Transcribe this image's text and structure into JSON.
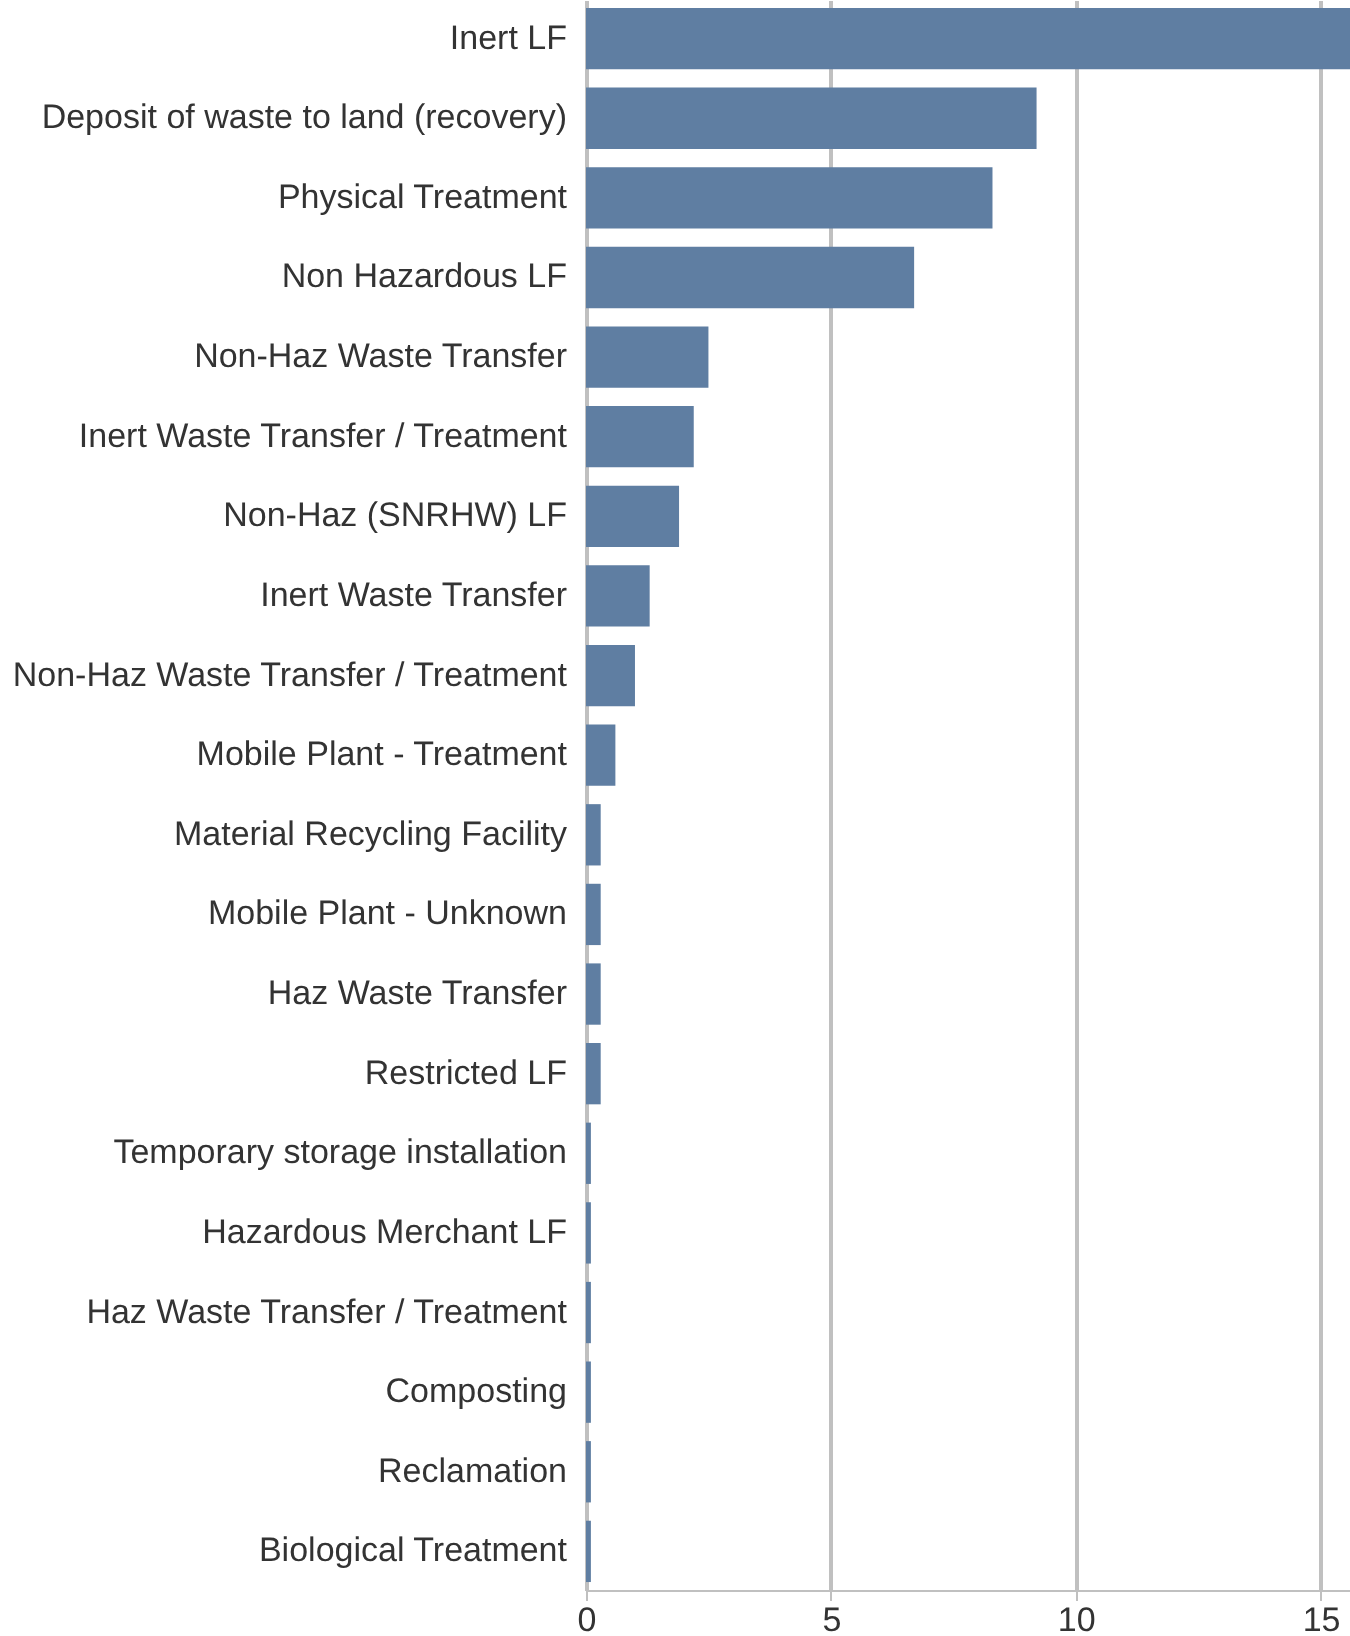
{
  "chart_data": {
    "type": "bar",
    "orientation": "horizontal",
    "categories": [
      "Inert LF",
      "Deposit of waste to land (recovery)",
      "Physical Treatment",
      "Non Hazardous LF",
      "Non-Haz Waste Transfer",
      "Inert Waste Transfer / Treatment",
      "Non-Haz (SNRHW) LF",
      "Inert Waste Transfer",
      "Non-Haz Waste Transfer / Treatment",
      "Mobile Plant - Treatment",
      "Material Recycling Facility",
      "Mobile Plant - Unknown",
      "Haz Waste Transfer",
      "Restricted LF",
      "Temporary storage installation",
      "Hazardous Merchant LF",
      "Haz Waste Transfer / Treatment",
      "Composting",
      "Reclamation",
      "Biological Treatment"
    ],
    "values": [
      15.6,
      9.2,
      8.3,
      6.7,
      2.5,
      2.2,
      1.9,
      1.3,
      1.0,
      0.6,
      0.3,
      0.3,
      0.3,
      0.3,
      0.1,
      0.1,
      0.1,
      0.1,
      0.1,
      0.1
    ],
    "color": "#5f7ea2",
    "xlim": [
      0,
      15.6
    ],
    "xticks": [
      0,
      5,
      10,
      15
    ],
    "grid": "x"
  }
}
